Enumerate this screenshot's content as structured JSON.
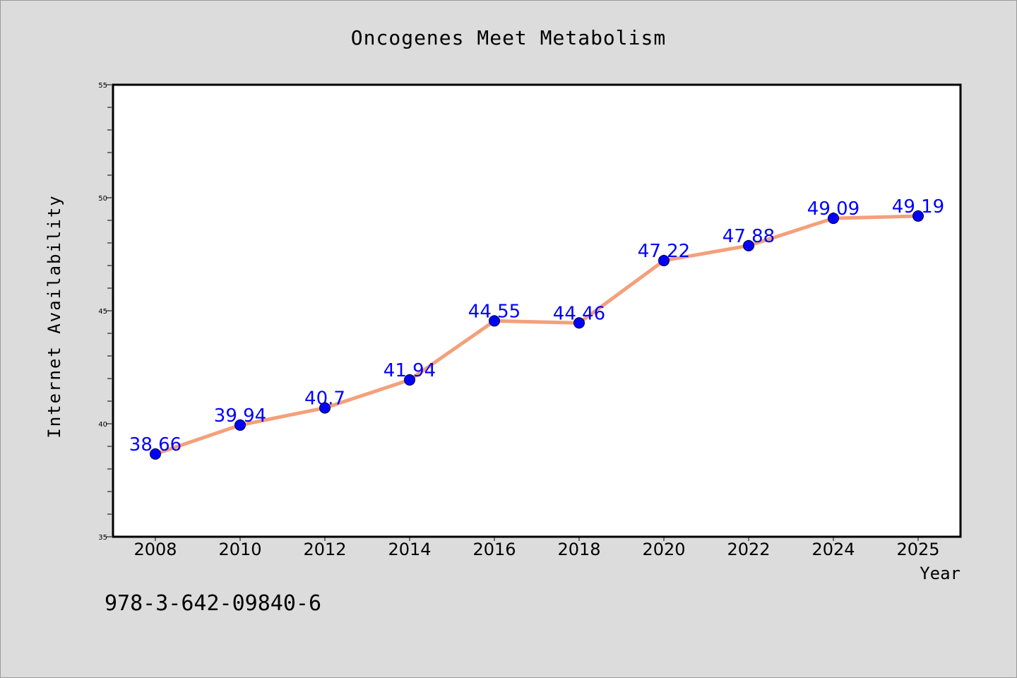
{
  "chart_data": {
    "type": "line",
    "title": "Oncogenes Meet Metabolism",
    "xlabel": "Year",
    "ylabel": "Internet Availability",
    "footer": "978-3-642-09840-6",
    "x": [
      2008,
      2010,
      2012,
      2014,
      2016,
      2018,
      2020,
      2022,
      2024,
      2025
    ],
    "x_tick_labels": [
      "2008",
      "2010",
      "2012",
      "2014",
      "2016",
      "2018",
      "2020",
      "2022",
      "2024",
      "2025"
    ],
    "series": [
      {
        "values": [
          38.66,
          39.94,
          40.7,
          41.94,
          44.55,
          44.46,
          47.22,
          47.88,
          49.09,
          49.19
        ],
        "data_labels": [
          "38.66",
          "39.94",
          "40.7",
          "41.94",
          "44.55",
          "44.46",
          "47.22",
          "47.88",
          "49.09",
          "49.19"
        ]
      }
    ],
    "ylim": [
      35,
      55
    ],
    "y_ticks": [
      35,
      40,
      45,
      50,
      55
    ],
    "y_minor_step": 1,
    "grid": false,
    "legend": "none",
    "colors": {
      "line": "#f4a07a",
      "marker": "#0000ff",
      "label": "#0000ff",
      "background": "#dcdcdc",
      "plot_background": "#ffffff"
    }
  }
}
